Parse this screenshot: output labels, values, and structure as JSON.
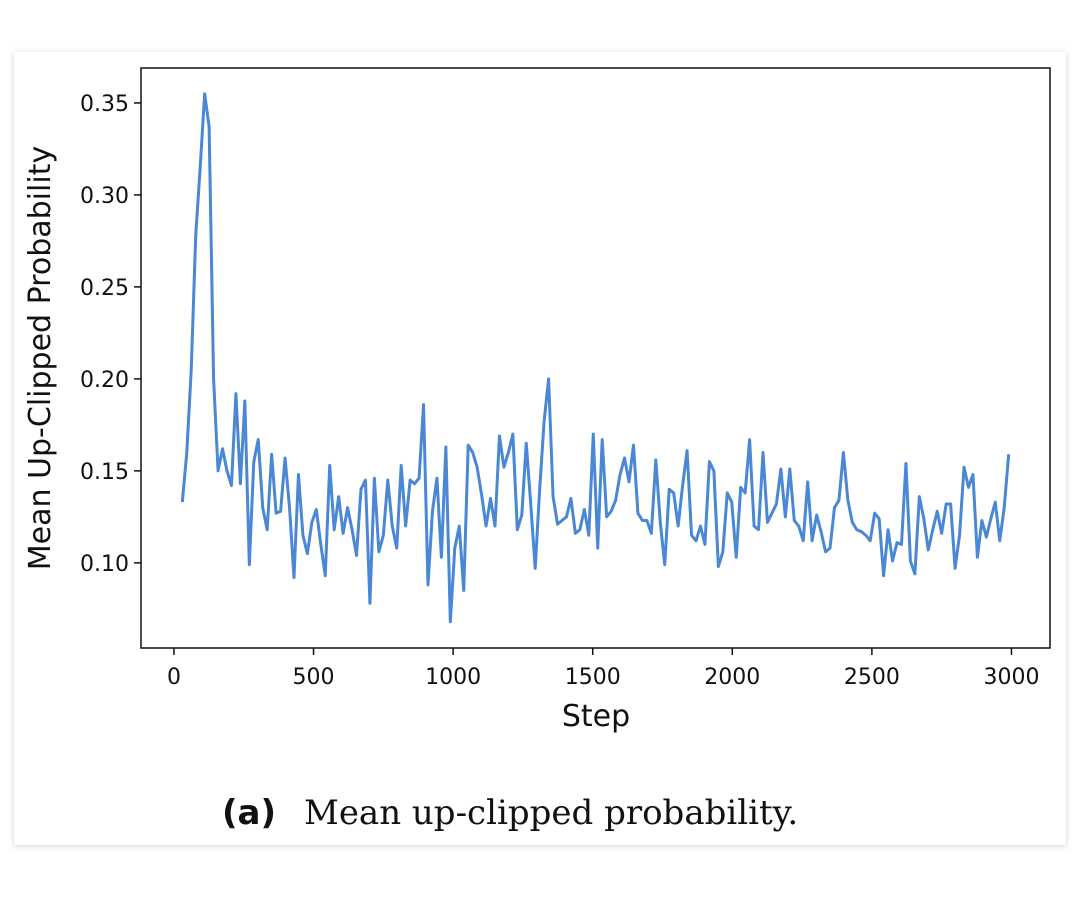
{
  "chart_data": {
    "type": "line",
    "ylabel": "Mean Up-Clipped Probability",
    "xlabel": "Step",
    "caption_tag": "(a)",
    "caption": "Mean up-clipped probability.",
    "xlim": [
      -118,
      3138
    ],
    "ylim": [
      0.0537,
      0.369
    ],
    "xticks": [
      0,
      500,
      1000,
      1500,
      2000,
      2500,
      3000
    ],
    "yticks": [
      {
        "value": 0.1,
        "label": "0.10"
      },
      {
        "value": 0.15,
        "label": "0.15"
      },
      {
        "value": 0.2,
        "label": "0.20"
      },
      {
        "value": 0.25,
        "label": "0.25"
      },
      {
        "value": 0.3,
        "label": "0.30"
      },
      {
        "value": 0.35,
        "label": "0.35"
      }
    ],
    "grid": false,
    "x": [
      30,
      46,
      62,
      78,
      94,
      110,
      126,
      142,
      158,
      174,
      190,
      206,
      222,
      238,
      254,
      270,
      286,
      302,
      318,
      334,
      350,
      366,
      382,
      398,
      414,
      430,
      446,
      462,
      478,
      494,
      510,
      526,
      542,
      558,
      574,
      590,
      606,
      622,
      638,
      654,
      670,
      686,
      702,
      718,
      734,
      750,
      766,
      782,
      798,
      814,
      830,
      846,
      862,
      878,
      894,
      910,
      926,
      942,
      958,
      974,
      990,
      1006,
      1022,
      1038,
      1054,
      1070,
      1086,
      1102,
      1118,
      1134,
      1150,
      1166,
      1182,
      1198,
      1214,
      1230,
      1246,
      1262,
      1278,
      1294,
      1310,
      1326,
      1342,
      1358,
      1374,
      1390,
      1406,
      1422,
      1438,
      1454,
      1470,
      1486,
      1502,
      1518,
      1534,
      1550,
      1566,
      1582,
      1598,
      1614,
      1630,
      1646,
      1662,
      1678,
      1694,
      1710,
      1726,
      1742,
      1758,
      1774,
      1790,
      1806,
      1822,
      1838,
      1854,
      1870,
      1886,
      1902,
      1918,
      1934,
      1950,
      1966,
      1982,
      1998,
      2014,
      2030,
      2046,
      2062,
      2078,
      2094,
      2110,
      2126,
      2142,
      2158,
      2174,
      2190,
      2206,
      2222,
      2238,
      2254,
      2270,
      2286,
      2302,
      2318,
      2334,
      2350,
      2366,
      2382,
      2398,
      2414,
      2430,
      2446,
      2462,
      2478,
      2494,
      2510,
      2526,
      2542,
      2558,
      2574,
      2590,
      2606,
      2622,
      2638,
      2654,
      2670,
      2686,
      2702,
      2718,
      2734,
      2750,
      2766,
      2782,
      2798,
      2814,
      2830,
      2846,
      2862,
      2878,
      2894,
      2910,
      2926,
      2942,
      2958,
      2974,
      2990
    ],
    "series": [
      {
        "name": "Mean Up-Clipped Probability",
        "color": "#4a88d6",
        "values": [
          0.133,
          0.16,
          0.205,
          0.278,
          0.315,
          0.355,
          0.337,
          0.2,
          0.15,
          0.162,
          0.15,
          0.142,
          0.192,
          0.143,
          0.188,
          0.099,
          0.155,
          0.167,
          0.13,
          0.118,
          0.159,
          0.127,
          0.128,
          0.157,
          0.13,
          0.092,
          0.148,
          0.115,
          0.105,
          0.122,
          0.129,
          0.11,
          0.093,
          0.153,
          0.118,
          0.136,
          0.116,
          0.13,
          0.118,
          0.104,
          0.14,
          0.145,
          0.078,
          0.146,
          0.106,
          0.115,
          0.145,
          0.12,
          0.108,
          0.153,
          0.12,
          0.145,
          0.143,
          0.146,
          0.186,
          0.088,
          0.128,
          0.146,
          0.103,
          0.163,
          0.068,
          0.108,
          0.12,
          0.085,
          0.164,
          0.16,
          0.152,
          0.137,
          0.12,
          0.135,
          0.12,
          0.169,
          0.152,
          0.16,
          0.17,
          0.118,
          0.126,
          0.165,
          0.132,
          0.097,
          0.14,
          0.177,
          0.2,
          0.136,
          0.121,
          0.123,
          0.125,
          0.135,
          0.116,
          0.118,
          0.129,
          0.115,
          0.17,
          0.108,
          0.167,
          0.125,
          0.128,
          0.134,
          0.148,
          0.157,
          0.144,
          0.164,
          0.127,
          0.123,
          0.123,
          0.116,
          0.156,
          0.122,
          0.099,
          0.14,
          0.138,
          0.12,
          0.142,
          0.161,
          0.115,
          0.112,
          0.12,
          0.11,
          0.155,
          0.15,
          0.098,
          0.106,
          0.138,
          0.133,
          0.103,
          0.141,
          0.138,
          0.167,
          0.12,
          0.118,
          0.16,
          0.122,
          0.127,
          0.132,
          0.151,
          0.125,
          0.151,
          0.123,
          0.12,
          0.112,
          0.144,
          0.112,
          0.126,
          0.117,
          0.106,
          0.108,
          0.13,
          0.134,
          0.16,
          0.134,
          0.122,
          0.118,
          0.117,
          0.115,
          0.112,
          0.127,
          0.124,
          0.093,
          0.118,
          0.101,
          0.111,
          0.11,
          0.154,
          0.101,
          0.094,
          0.136,
          0.124,
          0.107,
          0.118,
          0.128,
          0.116,
          0.132,
          0.132,
          0.097,
          0.115,
          0.152,
          0.141,
          0.148,
          0.103,
          0.123,
          0.114,
          0.124,
          0.133,
          0.112,
          0.13,
          0.159
        ]
      }
    ]
  }
}
